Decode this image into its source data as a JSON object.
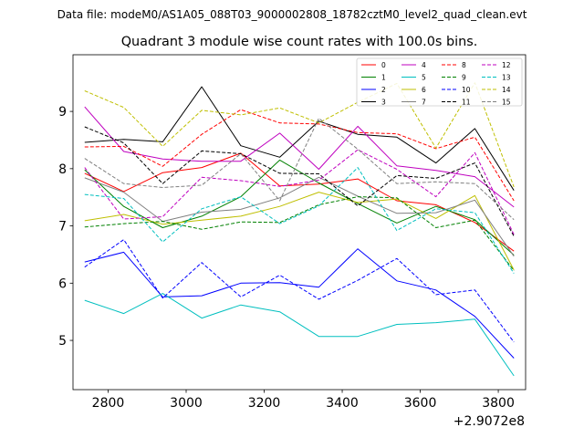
{
  "figure": {
    "suptitle": "Data file: modeM0/AS1A05_088T03_9000002808_18782cztM0_level2_quad_clean.evt"
  },
  "chart_data": {
    "type": "line",
    "title": "Quadrant 3 module wise count rates with 100.0s bins.",
    "xlabel": "",
    "ylabel": "",
    "x_offset_label": "+2.9072e8",
    "x": [
      2740,
      2840,
      2940,
      3040,
      3140,
      3240,
      3340,
      3440,
      3540,
      3640,
      3740,
      3840
    ],
    "xlim": [
      2710,
      3870
    ],
    "ylim": [
      4.14,
      9.99
    ],
    "xticks": [
      2800,
      3000,
      3200,
      3400,
      3600,
      3800
    ],
    "xtick_labels": [
      "2800",
      "3000",
      "3200",
      "3400",
      "3600",
      "3800"
    ],
    "yticks": [
      5,
      6,
      7,
      8,
      9
    ],
    "ytick_labels": [
      "5",
      "6",
      "7",
      "8",
      "9"
    ],
    "legend_position": "top-right",
    "series": [
      {
        "name": "0",
        "color": "#ff0000",
        "dash": "solid",
        "values": [
          7.92,
          7.6,
          7.93,
          8.02,
          8.27,
          7.7,
          7.73,
          7.82,
          7.44,
          7.37,
          7.06,
          6.56
        ]
      },
      {
        "name": "1",
        "color": "#008000",
        "dash": "solid",
        "values": [
          7.98,
          7.34,
          6.97,
          7.17,
          7.51,
          8.15,
          7.75,
          7.39,
          7.05,
          7.34,
          7.11,
          6.49
        ]
      },
      {
        "name": "2",
        "color": "#0000ff",
        "dash": "solid",
        "values": [
          6.37,
          6.54,
          5.76,
          5.78,
          6.0,
          6.01,
          5.93,
          6.6,
          6.04,
          5.88,
          5.42,
          4.69
        ]
      },
      {
        "name": "3",
        "color": "#000000",
        "dash": "solid",
        "values": [
          8.46,
          8.51,
          8.47,
          9.43,
          8.4,
          8.2,
          8.83,
          8.6,
          8.55,
          8.1,
          8.7,
          7.62
        ]
      },
      {
        "name": "4",
        "color": "#bf00bf",
        "dash": "solid",
        "values": [
          9.08,
          8.3,
          8.17,
          8.13,
          8.13,
          8.62,
          7.99,
          8.74,
          8.05,
          7.97,
          7.86,
          7.33
        ]
      },
      {
        "name": "5",
        "color": "#00bfbf",
        "dash": "solid",
        "values": [
          5.7,
          5.47,
          5.82,
          5.39,
          5.62,
          5.5,
          5.07,
          5.07,
          5.28,
          5.31,
          5.37,
          4.38
        ]
      },
      {
        "name": "6",
        "color": "#bfbf00",
        "dash": "solid",
        "values": [
          7.09,
          7.2,
          7.03,
          7.1,
          7.17,
          7.34,
          7.59,
          7.41,
          7.47,
          7.13,
          7.53,
          6.23
        ]
      },
      {
        "name": "7",
        "color": "#808080",
        "dash": "solid",
        "values": [
          7.84,
          7.59,
          7.08,
          7.24,
          7.29,
          7.49,
          7.85,
          7.52,
          7.22,
          7.23,
          7.45,
          6.47
        ]
      },
      {
        "name": "8",
        "color": "#ff0000",
        "dash": "dashed",
        "values": [
          8.38,
          8.39,
          8.04,
          8.6,
          9.03,
          8.8,
          8.78,
          8.63,
          8.61,
          8.35,
          8.55,
          7.44
        ]
      },
      {
        "name": "9",
        "color": "#008000",
        "dash": "dashed",
        "values": [
          6.98,
          7.04,
          7.08,
          6.94,
          7.07,
          7.06,
          7.37,
          7.51,
          7.49,
          6.97,
          7.1,
          6.22
        ]
      },
      {
        "name": "10",
        "color": "#0000ff",
        "dash": "dashed",
        "values": [
          6.28,
          6.76,
          5.74,
          6.36,
          5.76,
          6.14,
          5.72,
          6.05,
          6.43,
          5.8,
          5.88,
          4.97
        ]
      },
      {
        "name": "11",
        "color": "#000000",
        "dash": "dashed",
        "values": [
          8.73,
          8.45,
          7.74,
          8.31,
          8.26,
          7.92,
          7.91,
          7.35,
          7.88,
          7.83,
          8.1,
          6.82
        ]
      },
      {
        "name": "12",
        "color": "#bf00bf",
        "dash": "dashed",
        "values": [
          8.02,
          7.12,
          7.16,
          7.85,
          7.79,
          7.69,
          7.8,
          8.33,
          7.99,
          7.51,
          8.28,
          6.85
        ]
      },
      {
        "name": "13",
        "color": "#00bfbf",
        "dash": "dashed",
        "values": [
          7.55,
          7.48,
          6.72,
          7.3,
          7.51,
          7.04,
          7.35,
          8.02,
          6.92,
          7.3,
          7.23,
          6.17
        ]
      },
      {
        "name": "14",
        "color": "#bfbf00",
        "dash": "dashed",
        "values": [
          9.36,
          9.07,
          8.39,
          9.02,
          8.94,
          9.06,
          8.8,
          9.16,
          9.49,
          8.36,
          9.5,
          7.68
        ]
      },
      {
        "name": "15",
        "color": "#808080",
        "dash": "dashed",
        "values": [
          8.18,
          7.74,
          7.67,
          7.71,
          8.26,
          7.44,
          8.88,
          8.34,
          7.74,
          7.77,
          7.74,
          7.11
        ]
      }
    ]
  }
}
